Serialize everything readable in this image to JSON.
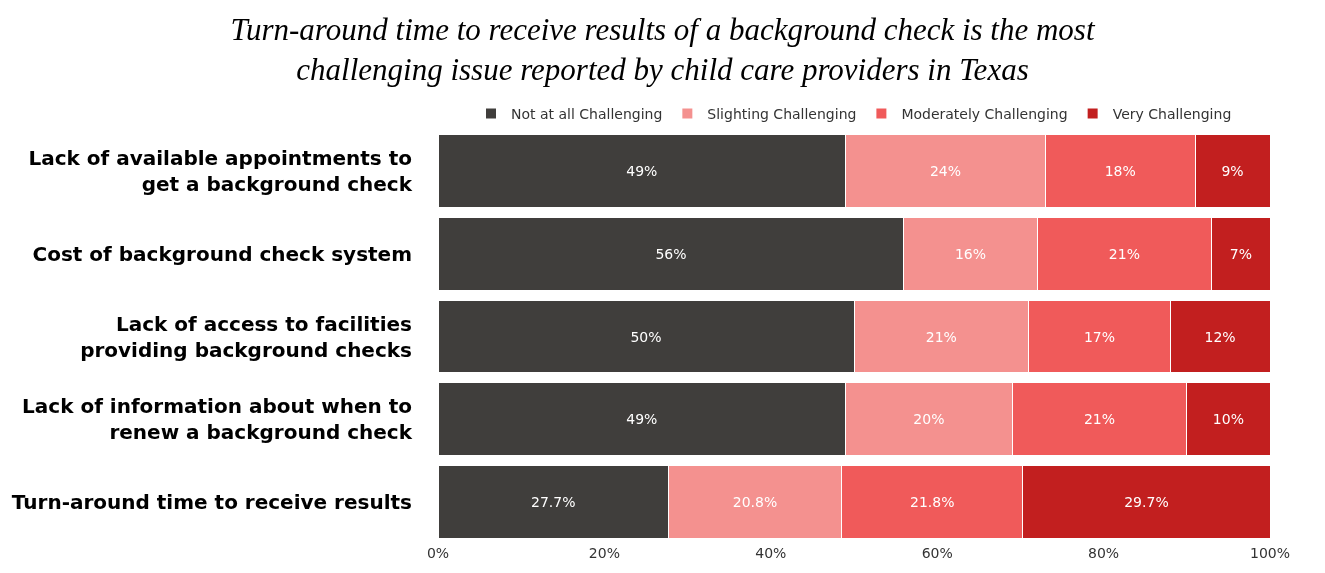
{
  "chart_data": {
    "type": "bar",
    "orientation": "horizontal",
    "stacked": true,
    "title": "Turn-around time to receive results of a background check is the most challenging issue reported by child care providers in Texas",
    "categories": [
      "Lack of available appointments to get a background check",
      "Cost of background check system",
      "Lack of access to facilities providing background checks",
      "Lack of information about when to renew a background check",
      "Turn-around time to receive results"
    ],
    "series": [
      {
        "name": "Not at all Challenging",
        "color": "#403e3c",
        "values": [
          49,
          56,
          50,
          49,
          27.7
        ],
        "value_labels": [
          "49%",
          "56%",
          "50%",
          "49%",
          "27.7%"
        ]
      },
      {
        "name": "Slighting Challenging",
        "color": "#f4918f",
        "values": [
          24,
          16,
          21,
          20,
          20.8
        ],
        "value_labels": [
          "24%",
          "16%",
          "21%",
          "20%",
          "20.8%"
        ]
      },
      {
        "name": "Moderately Challenging",
        "color": "#f05a5a",
        "values": [
          18,
          21,
          17,
          21,
          21.8
        ],
        "value_labels": [
          "18%",
          "21%",
          "17%",
          "21%",
          "21.8%"
        ]
      },
      {
        "name": "Very Challenging",
        "color": "#c21f1f",
        "values": [
          9,
          7,
          12,
          10,
          29.7
        ],
        "value_labels": [
          "9%",
          "7%",
          "12%",
          "10%",
          "29.7%"
        ]
      }
    ],
    "xlim": [
      0,
      100
    ],
    "xticks": [
      {
        "value": 0,
        "label": "0%"
      },
      {
        "value": 20,
        "label": "20%"
      },
      {
        "value": 40,
        "label": "40%"
      },
      {
        "value": 60,
        "label": "60%"
      },
      {
        "value": 80,
        "label": "80%"
      },
      {
        "value": 100,
        "label": "100%"
      }
    ],
    "grid": false,
    "legend": "top"
  }
}
